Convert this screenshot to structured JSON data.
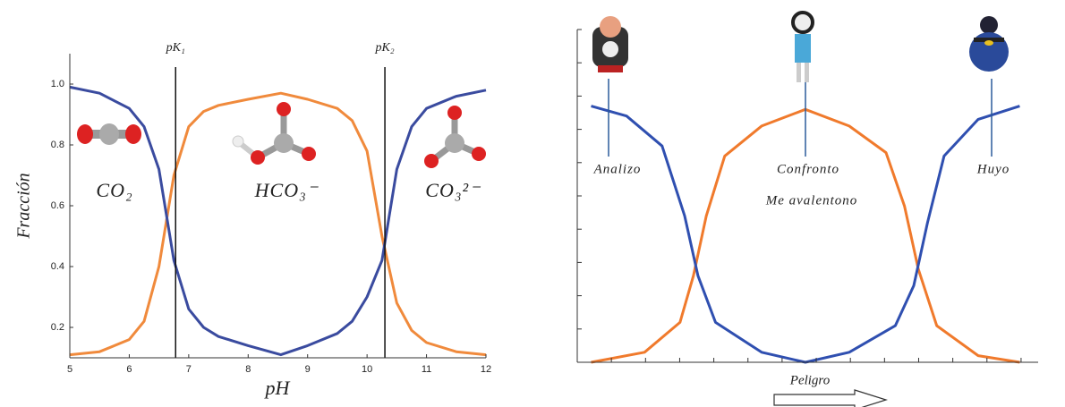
{
  "chart_data": [
    {
      "type": "line",
      "x_label": "pH",
      "y_label": "Fracción",
      "xlim": [
        5,
        12
      ],
      "ylim": [
        0.1,
        1.1
      ],
      "xticks": [
        5,
        6,
        7,
        8,
        9,
        10,
        11,
        12
      ],
      "yticks": [
        0.2,
        0.4,
        0.6,
        0.8,
        {
          "value": 1,
          "label": "1.0"
        }
      ],
      "grid": false,
      "x": [
        5,
        5.5,
        6,
        6.25,
        6.5,
        6.75,
        7,
        7.25,
        7.5,
        8,
        8.55,
        9,
        9.5,
        9.75,
        10,
        10.25,
        10.5,
        10.75,
        11,
        11.5,
        12
      ],
      "series": [
        {
          "color": "#3a4b9f",
          "values": [
            0.99,
            0.97,
            0.92,
            0.86,
            0.72,
            0.42,
            0.26,
            0.2,
            0.17,
            0.14,
            0.11,
            0.14,
            0.18,
            0.22,
            0.3,
            0.42,
            0.72,
            0.86,
            0.92,
            0.96,
            0.98
          ]
        },
        {
          "color": "#f08a3c",
          "values": [
            0.11,
            0.12,
            0.16,
            0.22,
            0.4,
            0.7,
            0.86,
            0.91,
            0.93,
            0.95,
            0.97,
            0.95,
            0.92,
            0.88,
            0.78,
            0.5,
            0.28,
            0.19,
            0.15,
            0.12,
            0.11
          ]
        }
      ],
      "vlines": [
        {
          "x": 6.78,
          "label": "pK₁"
        },
        {
          "x": 10.3,
          "label": "pK₂"
        }
      ],
      "annotations": [
        "CO₂",
        "HCO₃⁻",
        "CO₃²⁻"
      ]
    },
    {
      "type": "line",
      "x_label": "Peligro",
      "xlim": [
        0,
        10
      ],
      "ylim": [
        0,
        1
      ],
      "series": [
        {
          "color": "#2f4fb0",
          "x": [
            0.3,
            1.07,
            1.84,
            2.33,
            2.62,
            3.0,
            4.0,
            4.95,
            5.9,
            6.9,
            7.3,
            7.6,
            7.96,
            8.7,
            9.6
          ],
          "values": [
            0.77,
            0.74,
            0.65,
            0.44,
            0.26,
            0.12,
            0.03,
            0,
            0.03,
            0.11,
            0.23,
            0.42,
            0.62,
            0.73,
            0.77
          ]
        },
        {
          "color": "#f07a2c",
          "x": [
            0.3,
            1.46,
            2.23,
            2.52,
            2.8,
            3.2,
            4.0,
            4.95,
            5.9,
            6.7,
            7.1,
            7.4,
            7.8,
            8.7,
            9.6
          ],
          "values": [
            0,
            0.03,
            0.12,
            0.26,
            0.44,
            0.62,
            0.71,
            0.76,
            0.71,
            0.63,
            0.47,
            0.28,
            0.11,
            0.02,
            0
          ]
        }
      ],
      "annotations": [
        "Analizo",
        "Confronto",
        "Me avalentono",
        "Huyo"
      ]
    }
  ]
}
